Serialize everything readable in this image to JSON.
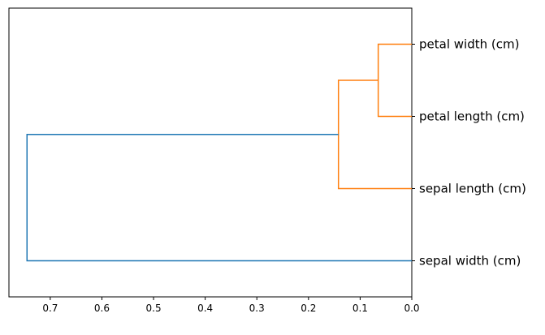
{
  "chart_data": {
    "type": "dendrogram",
    "orientation": "left",
    "title": "",
    "xlabel": "",
    "ylabel": "",
    "xlim": [
      0.78,
      0.0
    ],
    "x_ticks": [
      0.7,
      0.6,
      0.5,
      0.4,
      0.3,
      0.2,
      0.1,
      0.0
    ],
    "x_tick_labels": [
      "0.7",
      "0.6",
      "0.5",
      "0.4",
      "0.3",
      "0.2",
      "0.1",
      "0.0"
    ],
    "leaves": [
      "petal width (cm)",
      "petal length (cm)",
      "sepal length (cm)",
      "sepal width (cm)"
    ],
    "merges": [
      {
        "left": "petal width (cm)",
        "right": "petal length (cm)",
        "distance": 0.065,
        "color": "#ff7f0e"
      },
      {
        "left": "cluster-1",
        "right": "sepal length (cm)",
        "distance": 0.142,
        "color": "#ff7f0e"
      },
      {
        "left": "cluster-2",
        "right": "sepal width (cm)",
        "distance": 0.745,
        "color": "#1f77b4"
      }
    ],
    "grid": false,
    "legend": "none"
  }
}
